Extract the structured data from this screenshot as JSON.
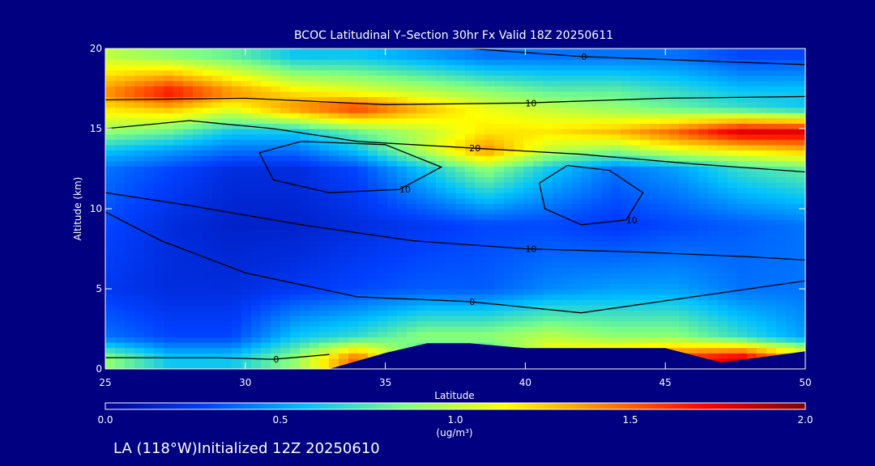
{
  "chart_data": {
    "type": "heatmap",
    "title": "BCOC Latitudinal Y–Section 30hr  Fx Valid 18Z 20250611",
    "xlabel": "Latitude",
    "ylabel": "Altitude (km)",
    "xlim": [
      25,
      50
    ],
    "ylim": [
      0,
      20
    ],
    "xticks": [
      "25",
      "30",
      "35",
      "40",
      "45",
      "50"
    ],
    "yticks": [
      "0",
      "5",
      "10",
      "15",
      "20"
    ],
    "colorbar": {
      "range": [
        0.0,
        2.0
      ],
      "ticks": [
        "0.0",
        "0.5",
        "1.0",
        "1.5",
        "2.0"
      ],
      "units": "(ug/m³)",
      "colormap": [
        "#000090",
        "#0040ff",
        "#00c0ff",
        "#80ff80",
        "#ffff00",
        "#ff8000",
        "#ff0000",
        "#800000"
      ]
    },
    "field_layers": [
      {
        "alt": 0.7,
        "values": [
          0.9,
          0.6,
          0.6,
          0.9,
          1.5,
          0.6,
          0.6,
          1.2,
          1.4,
          1.6,
          1.8,
          1.3
        ]
      },
      {
        "alt": 2.0,
        "values": [
          0.4,
          0.3,
          0.3,
          0.6,
          0.7,
          0.9,
          0.9,
          1.0,
          0.9,
          0.9,
          0.7,
          0.5
        ]
      },
      {
        "alt": 5.0,
        "values": [
          0.25,
          0.2,
          0.2,
          0.25,
          0.3,
          0.35,
          0.35,
          0.45,
          0.5,
          0.5,
          0.4,
          0.4
        ]
      },
      {
        "alt": 9.0,
        "values": [
          0.3,
          0.2,
          0.15,
          0.15,
          0.2,
          0.25,
          0.3,
          0.3,
          0.25,
          0.3,
          0.35,
          0.4
        ]
      },
      {
        "alt": 12.5,
        "values": [
          0.4,
          0.3,
          0.2,
          0.2,
          0.3,
          0.6,
          0.9,
          0.6,
          0.4,
          0.5,
          0.7,
          0.8
        ]
      },
      {
        "alt": 13.7,
        "values": [
          0.6,
          0.5,
          0.4,
          0.4,
          0.6,
          1.0,
          1.4,
          1.0,
          0.9,
          1.1,
          1.2,
          1.3
        ]
      },
      {
        "alt": 14.8,
        "values": [
          0.9,
          0.8,
          0.6,
          0.6,
          0.8,
          1.0,
          1.2,
          1.2,
          1.3,
          1.5,
          1.8,
          1.8
        ]
      },
      {
        "alt": 16.3,
        "values": [
          1.2,
          1.3,
          1.1,
          1.4,
          1.6,
          1.3,
          1.1,
          1.0,
          0.9,
          0.8,
          0.7,
          0.6
        ]
      },
      {
        "alt": 17.3,
        "values": [
          1.4,
          1.7,
          1.4,
          1.2,
          1.1,
          1.0,
          0.9,
          0.8,
          0.8,
          0.7,
          0.6,
          0.6
        ]
      },
      {
        "alt": 19.5,
        "values": [
          1.0,
          0.9,
          0.8,
          0.6,
          0.6,
          0.5,
          0.4,
          0.4,
          0.4,
          0.4,
          0.3,
          0.3
        ]
      }
    ],
    "field_lats": [
      25,
      27.3,
      29.5,
      31.8,
      34,
      36.4,
      38.6,
      40.9,
      43.2,
      45.4,
      47.7,
      50
    ],
    "terrain_top_km": [
      [
        33,
        0
      ],
      [
        35,
        1.0
      ],
      [
        36.5,
        1.6
      ],
      [
        38,
        1.6
      ],
      [
        40,
        1.3
      ],
      [
        43,
        1.3
      ],
      [
        45,
        1.3
      ],
      [
        47,
        0.4
      ],
      [
        50,
        1.1
      ]
    ],
    "contours": [
      {
        "label": "0",
        "points": [
          [
            25,
            0.7
          ],
          [
            29,
            0.7
          ],
          [
            31,
            0.6
          ],
          [
            33,
            0.9
          ]
        ]
      },
      {
        "label": "10",
        "points": [
          [
            25,
            16.8
          ],
          [
            30,
            16.9
          ],
          [
            35,
            16.5
          ],
          [
            40,
            16.6
          ],
          [
            45,
            16.9
          ],
          [
            50,
            17.0
          ]
        ]
      },
      {
        "label": "20",
        "points": [
          [
            25,
            15.0
          ],
          [
            28,
            15.5
          ],
          [
            31,
            15.0
          ],
          [
            34,
            14.2
          ],
          [
            38,
            13.8
          ],
          [
            42,
            13.4
          ],
          [
            46,
            12.8
          ],
          [
            50,
            12.3
          ]
        ]
      },
      {
        "label": "10",
        "points": [
          [
            25,
            11.0
          ],
          [
            28,
            10.2
          ],
          [
            32,
            9.0
          ],
          [
            36,
            8.0
          ],
          [
            40,
            7.5
          ],
          [
            44,
            7.3
          ],
          [
            48,
            7.0
          ],
          [
            50,
            6.8
          ]
        ]
      },
      {
        "label": "0",
        "points": [
          [
            25,
            9.8
          ],
          [
            27,
            8.0
          ],
          [
            30,
            6.0
          ],
          [
            34,
            4.5
          ],
          [
            38,
            4.2
          ],
          [
            42,
            3.5
          ],
          [
            46,
            4.5
          ],
          [
            50,
            5.5
          ]
        ]
      },
      {
        "label": "10",
        "points": [
          [
            40.5,
            11.6
          ],
          [
            41.5,
            12.7
          ],
          [
            43,
            12.4
          ],
          [
            44.2,
            11.0
          ],
          [
            43.6,
            9.3
          ],
          [
            42,
            9.0
          ],
          [
            40.7,
            10.0
          ],
          [
            40.5,
            11.6
          ]
        ]
      },
      {
        "label": "10",
        "points": [
          [
            30.5,
            13.5
          ],
          [
            32,
            14.2
          ],
          [
            35,
            14.0
          ],
          [
            37,
            12.6
          ],
          [
            35.5,
            11.2
          ],
          [
            33,
            11.0
          ],
          [
            31,
            11.8
          ],
          [
            30.5,
            13.5
          ]
        ]
      },
      {
        "label": "0",
        "points": [
          [
            32,
            20
          ],
          [
            38,
            20
          ],
          [
            42,
            19.5
          ],
          [
            50,
            19.0
          ]
        ]
      }
    ],
    "footer": "LA (118°W)Initialized 12Z 20250610"
  }
}
